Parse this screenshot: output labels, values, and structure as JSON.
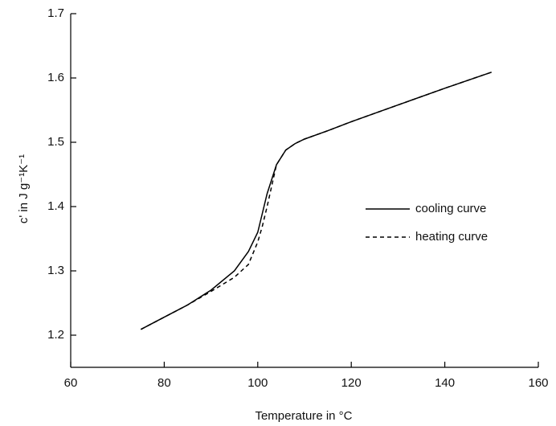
{
  "chart_data": {
    "type": "line",
    "x_label": "Temperature in °C",
    "y_label": "c' in J g⁻¹K⁻¹",
    "x": [
      75,
      80,
      85,
      90,
      95,
      98,
      100,
      101,
      102,
      104,
      106,
      108,
      110,
      115,
      120,
      130,
      140,
      150
    ],
    "series": [
      {
        "name": "cooling curve",
        "color": "#000000",
        "dash": "none",
        "values": [
          1.209,
          1.228,
          1.247,
          1.27,
          1.3,
          1.33,
          1.36,
          1.39,
          1.42,
          1.465,
          1.488,
          1.498,
          1.505,
          1.518,
          1.532,
          1.558,
          1.584,
          1.609
        ]
      },
      {
        "name": "heating curve",
        "color": "#000000",
        "dash": "5,4",
        "values": [
          1.209,
          1.228,
          1.247,
          1.268,
          1.29,
          1.31,
          1.345,
          1.37,
          1.4,
          1.465,
          1.488,
          1.498,
          1.505,
          1.518,
          1.532,
          1.558,
          1.584,
          1.609
        ]
      }
    ],
    "xlim": [
      60,
      160
    ],
    "xticks": [
      60,
      80,
      100,
      120,
      140,
      160
    ],
    "ylim": [
      1.15,
      1.7
    ],
    "yticks": [
      1.2,
      1.3,
      1.4,
      1.5,
      1.6,
      1.7
    ],
    "grid": false
  }
}
